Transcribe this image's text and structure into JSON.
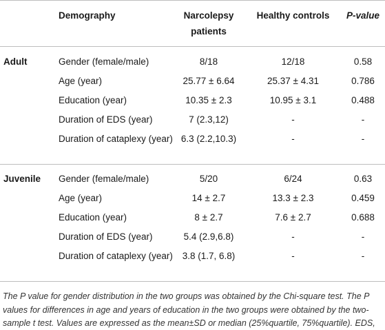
{
  "table": {
    "header": [
      "Demography",
      "Narcolepsy patients",
      "Healthy controls",
      "P-value"
    ],
    "sections": [
      {
        "label": "Adult",
        "rows": [
          [
            "Gender (female/male)",
            "8/18",
            "12/18",
            "0.58"
          ],
          [
            "Age (year)",
            "25.77 ± 6.64",
            "25.37 ± 4.31",
            "0.786"
          ],
          [
            "Education (year)",
            "10.35 ± 2.3",
            "10.95 ± 3.1",
            "0.488"
          ],
          [
            "Duration of EDS (year)",
            "7 (2.3,12)",
            "-",
            "-"
          ],
          [
            "Duration of cataplexy (year)",
            "6.3 (2.2,10.3)",
            "-",
            "-"
          ]
        ]
      },
      {
        "label": "Juvenile",
        "rows": [
          [
            "Gender (female/male)",
            "5/20",
            "6/24",
            "0.63"
          ],
          [
            "Age (year)",
            "14 ± 2.7",
            "13.3 ± 2.3",
            "0.459"
          ],
          [
            "Education (year)",
            "8 ± 2.7",
            "7.6 ± 2.7",
            "0.688"
          ],
          [
            "Duration of EDS (year)",
            "5.4 (2.9,6.8)",
            "-",
            "-"
          ],
          [
            "Duration of cataplexy (year)",
            "3.8 (1.7, 6.8)",
            "-",
            "-"
          ]
        ]
      }
    ],
    "footnote": "The P value for gender distribution in the two groups was obtained by the Chi-square test. The P values for differences in age and years of education in the two groups were obtained by the two-sample t test. Values are expressed as the mean±SD or median (25%quartile, 75%quartile). EDS, excessive daytime sleepiness."
  }
}
